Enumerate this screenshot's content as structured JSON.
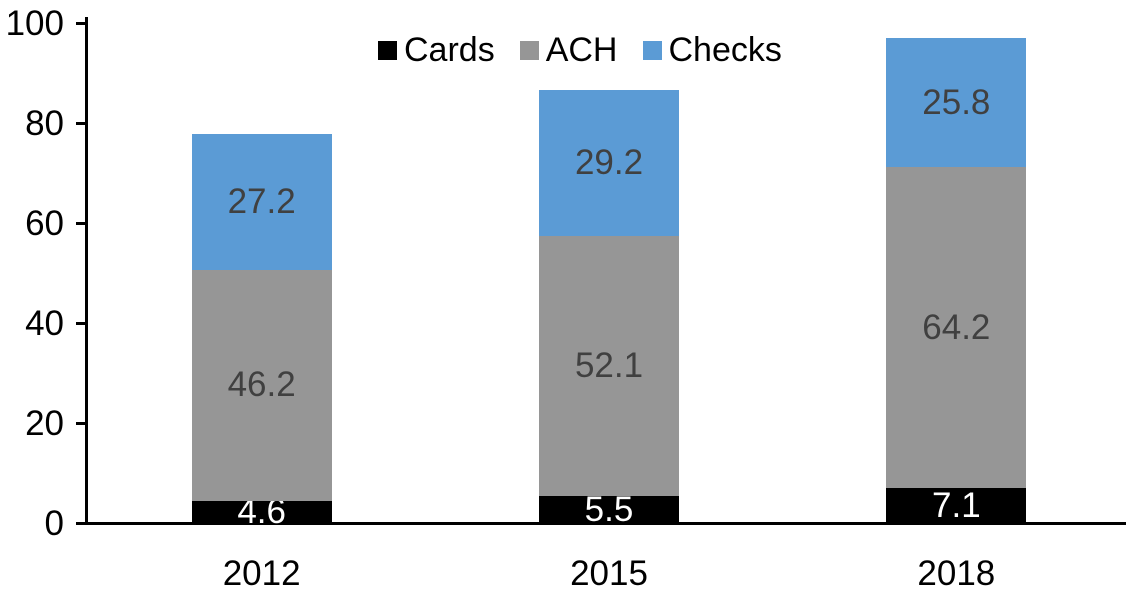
{
  "chart_data": {
    "type": "bar",
    "stacked": true,
    "title": "",
    "xlabel": "",
    "ylabel": "",
    "categories": [
      "2012",
      "2015",
      "2018"
    ],
    "series": [
      {
        "name": "Cards",
        "values": [
          4.6,
          5.5,
          7.1
        ],
        "color": "#000000",
        "label_color": "#ffffff"
      },
      {
        "name": "ACH",
        "values": [
          46.2,
          52.1,
          64.2
        ],
        "color": "#969696",
        "label_color": "#404040"
      },
      {
        "name": "Checks",
        "values": [
          27.2,
          29.2,
          25.8
        ],
        "color": "#5b9bd5",
        "label_color": "#404040"
      }
    ],
    "ylim": [
      0,
      100
    ],
    "yticks": [
      0,
      20,
      40,
      60,
      80,
      100
    ],
    "grid": false,
    "legend_position": "top",
    "axis_color": "#000000",
    "background_color": "#ffffff",
    "value_format": "one_decimal"
  }
}
